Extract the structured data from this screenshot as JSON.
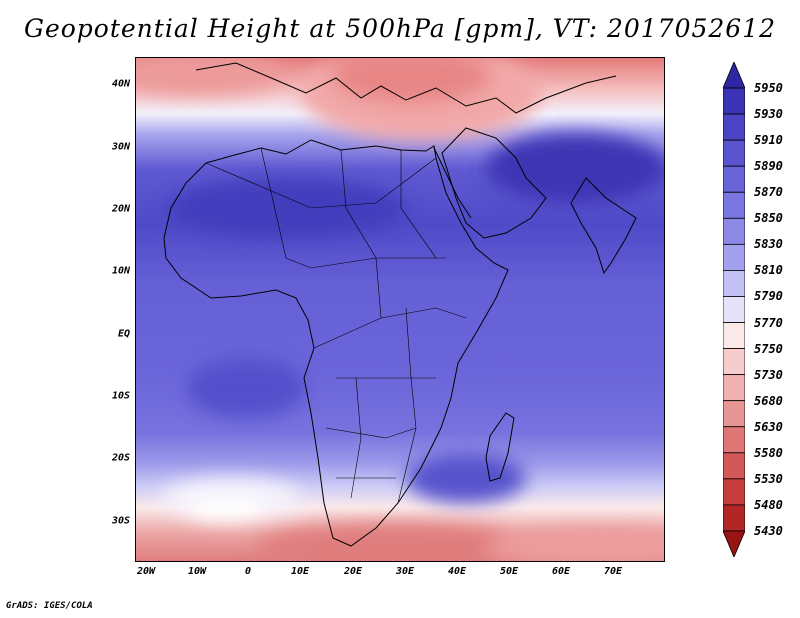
{
  "title": "Geopotential Height at 500hPa [gpm], VT: 2017052612",
  "map": {
    "region": "Africa, Arabia and western Indian Ocean",
    "lat_labels": [
      "40N",
      "30N",
      "20N",
      "10N",
      "EQ",
      "10S",
      "20S",
      "30S"
    ],
    "lon_labels": [
      "20W",
      "10W",
      "0",
      "10E",
      "20E",
      "30E",
      "40E",
      "50E",
      "60E",
      "70E"
    ]
  },
  "colorbar": {
    "levels": [
      "5950",
      "5930",
      "5910",
      "5890",
      "5870",
      "5850",
      "5830",
      "5810",
      "5790",
      "5770",
      "5750",
      "5730",
      "5680",
      "5630",
      "5580",
      "5530",
      "5480",
      "5430"
    ],
    "colors": [
      "#2e27a4",
      "#3a33b6",
      "#4a44c4",
      "#5a55cf",
      "#6964d8",
      "#7a76e0",
      "#8c89e6",
      "#a3a0ee",
      "#c2c0f4",
      "#e4e3fa",
      "#fbe9e9",
      "#f6cccc",
      "#efb0b0",
      "#e79494",
      "#de7676",
      "#d35858",
      "#c53c3c",
      "#b32626",
      "#9b1414"
    ]
  },
  "footer": "GrADS: IGES/COLA"
}
